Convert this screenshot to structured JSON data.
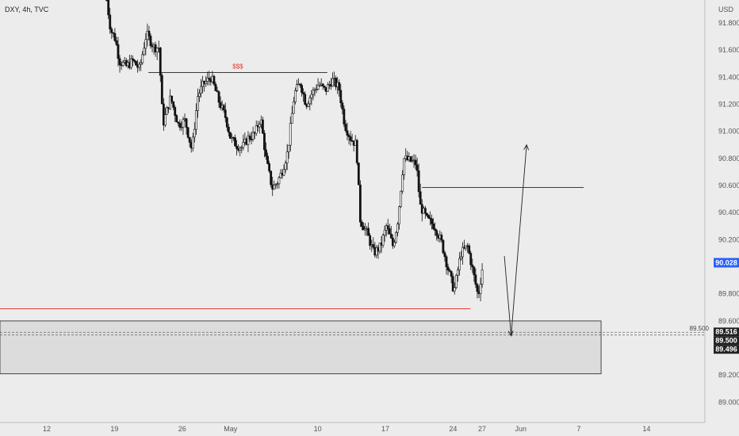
{
  "chart_data": {
    "type": "candlestick",
    "symbol_label": "DXY, 4h, TVC",
    "currency_label": "USD",
    "ylim": [
      88.85,
      91.97
    ],
    "y_ticks": [
      "91.800",
      "91.600",
      "91.400",
      "91.200",
      "91.000",
      "90.800",
      "90.600",
      "90.400",
      "90.200",
      "89.800",
      "89.600",
      "89.200",
      "89.000"
    ],
    "x_ticks": [
      {
        "label": "12",
        "day": 12
      },
      {
        "label": "19",
        "day": 19
      },
      {
        "label": "26",
        "day": 26
      },
      {
        "label": "May",
        "day": 31
      },
      {
        "label": "10",
        "day": 40
      },
      {
        "label": "17",
        "day": 47
      },
      {
        "label": "24",
        "day": 54
      },
      {
        "label": "27",
        "day": 57
      },
      {
        "label": "Jun",
        "day": 61
      },
      {
        "label": "7",
        "day": 67
      },
      {
        "label": "14",
        "day": 74
      }
    ],
    "price_path": [
      [
        18.2,
        91.97
      ],
      [
        18.6,
        91.75
      ],
      [
        19.1,
        91.68
      ],
      [
        19.5,
        91.52
      ],
      [
        20.2,
        91.48
      ],
      [
        20.9,
        91.52
      ],
      [
        21.6,
        91.46
      ],
      [
        22.3,
        91.72
      ],
      [
        23.1,
        91.62
      ],
      [
        23.6,
        91.62
      ],
      [
        24.0,
        91.05
      ],
      [
        24.8,
        91.25
      ],
      [
        25.6,
        91.05
      ],
      [
        26.3,
        91.08
      ],
      [
        27.0,
        90.86
      ],
      [
        27.6,
        91.26
      ],
      [
        28.2,
        91.35
      ],
      [
        29.0,
        91.4
      ],
      [
        29.8,
        91.22
      ],
      [
        30.5,
        91.1
      ],
      [
        31.0,
        90.95
      ],
      [
        31.6,
        90.9
      ],
      [
        32.2,
        90.88
      ],
      [
        32.8,
        90.95
      ],
      [
        33.5,
        90.98
      ],
      [
        34.1,
        91.1
      ],
      [
        34.7,
        90.78
      ],
      [
        35.3,
        90.58
      ],
      [
        35.8,
        90.62
      ],
      [
        36.3,
        90.7
      ],
      [
        36.9,
        90.85
      ],
      [
        37.6,
        91.28
      ],
      [
        38.2,
        91.36
      ],
      [
        38.8,
        91.2
      ],
      [
        39.4,
        91.28
      ],
      [
        40.1,
        91.35
      ],
      [
        40.8,
        91.3
      ],
      [
        41.5,
        91.38
      ],
      [
        42.2,
        91.32
      ],
      [
        42.8,
        91.05
      ],
      [
        43.4,
        90.95
      ],
      [
        44.0,
        90.9
      ],
      [
        44.4,
        90.35
      ],
      [
        45.1,
        90.25
      ],
      [
        45.8,
        90.1
      ],
      [
        46.5,
        90.15
      ],
      [
        47.1,
        90.3
      ],
      [
        47.8,
        90.15
      ],
      [
        48.3,
        90.35
      ],
      [
        48.9,
        90.8
      ],
      [
        49.6,
        90.78
      ],
      [
        50.2,
        90.76
      ],
      [
        50.6,
        90.45
      ],
      [
        51.3,
        90.35
      ],
      [
        52.1,
        90.3
      ],
      [
        52.8,
        90.18
      ],
      [
        53.5,
        89.98
      ],
      [
        54.1,
        89.82
      ],
      [
        54.8,
        90.1
      ],
      [
        55.5,
        90.15
      ],
      [
        56.1,
        89.95
      ],
      [
        56.6,
        89.78
      ],
      [
        57.1,
        90.03
      ]
    ],
    "annotations": {
      "liquidity_label": "$$$",
      "last_price_badge": "90.028",
      "zone_mid_note": "89.500",
      "zone_badges": [
        "89.516",
        "89.500",
        "89.496"
      ],
      "levels": {
        "liquidity_top": 91.435,
        "resistance": 90.585,
        "equal_lows": 89.69,
        "zone_top": 89.6,
        "zone_bottom": 89.21,
        "zone_line_a": 89.516,
        "zone_line_b": 89.496
      },
      "liquidity_span": [
        22.5,
        41.0
      ],
      "resistance_span": [
        50.8,
        67.5
      ],
      "equal_lows_span": [
        8.0,
        55.8
      ],
      "zone_span": [
        8.0,
        69.3
      ],
      "projection": [
        [
          59.3,
          90.08
        ],
        [
          60.0,
          89.49
        ],
        [
          61.6,
          90.9
        ]
      ]
    },
    "colors": {
      "up": "#ffffff",
      "down": "#111111",
      "wick": "#111111",
      "liquidity_label": "#e53935",
      "equal_lows_line": "#e53935",
      "badge": "#2962ff",
      "zone_fill": "#dcdcdc"
    }
  }
}
